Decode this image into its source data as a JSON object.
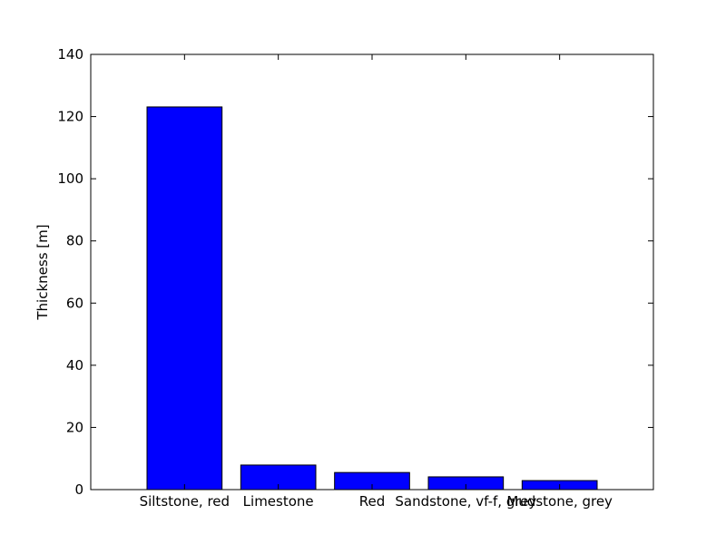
{
  "chart_data": {
    "type": "bar",
    "y_label": "Thickness [m]",
    "categories": [
      "Siltstone, red",
      "Limestone",
      "Red",
      "Sandstone, vf-f, grey",
      "Mudstone, grey"
    ],
    "values": [
      123.1,
      7.9,
      5.5,
      4.1,
      2.9
    ],
    "color": "#0000ff",
    "ylim": [
      0,
      140
    ],
    "yticks": [
      0,
      20,
      40,
      60,
      80,
      100,
      120,
      140
    ],
    "grid": false
  }
}
